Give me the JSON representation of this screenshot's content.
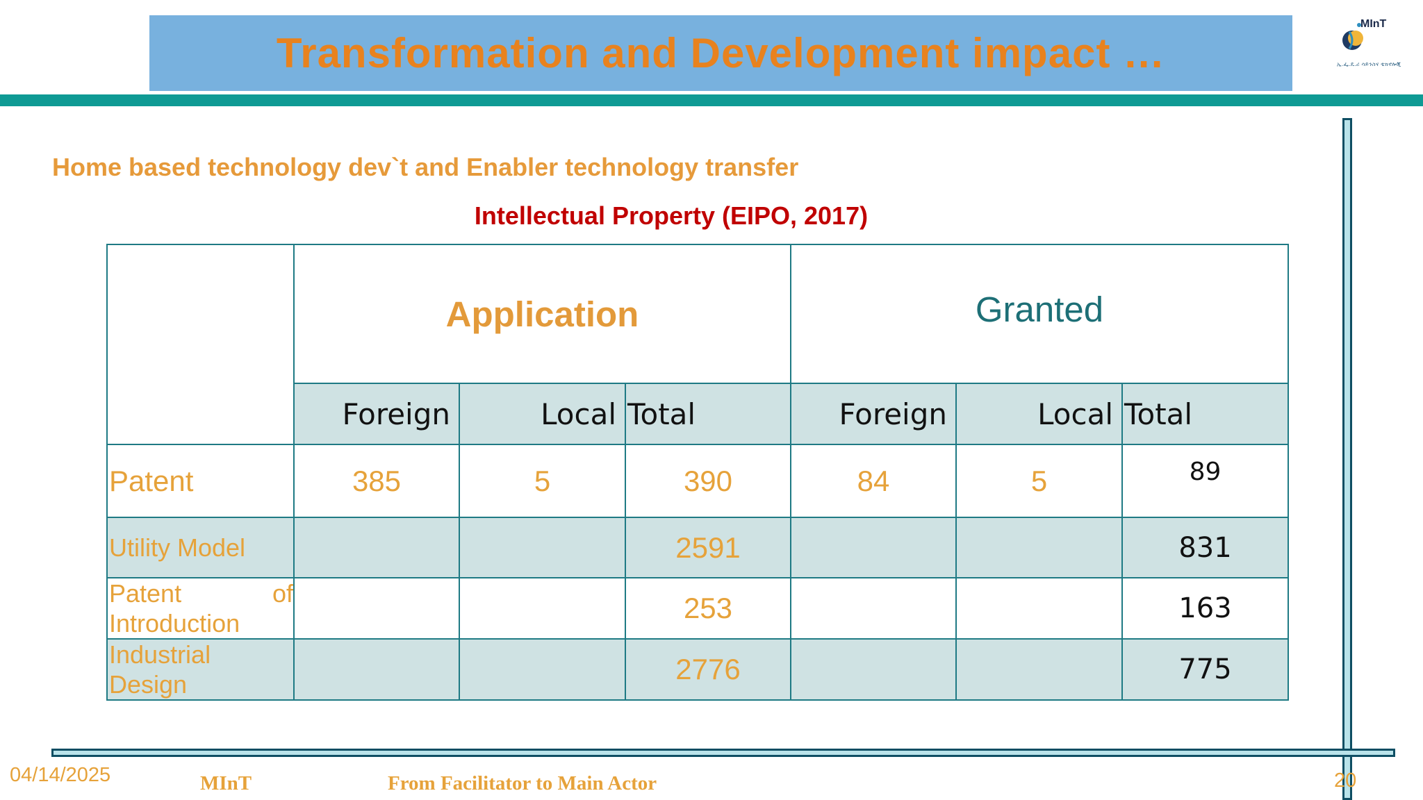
{
  "slide": {
    "title": "Transformation and Development impact …",
    "subtitle": "Home based technology dev`t and Enabler technology transfer",
    "table_title": "Intellectual Property (EIPO, 2017)"
  },
  "logo": {
    "name": "MInT",
    "caption": "ኢ.ፌ.ዴ.ሪ ሳይንስና ቴክኖሎጂ",
    "icon": "mint-logo-icon"
  },
  "table": {
    "groups": [
      "Application",
      "Granted"
    ],
    "subheaders": [
      "Foreign",
      "Local",
      "Total",
      "Foreign",
      "Local",
      "Total"
    ],
    "rows": [
      {
        "label": "Patent",
        "app_foreign": "385",
        "app_local": "5",
        "app_total": "390",
        "grant_foreign": "84",
        "grant_local": "5",
        "grant_total": "89"
      },
      {
        "label": "Utility Model",
        "app_foreign": "",
        "app_local": "",
        "app_total": "2591",
        "grant_foreign": "",
        "grant_local": "",
        "grant_total": "831"
      },
      {
        "label_line1_a": "Patent",
        "label_line1_b": "of",
        "label_line2": "Introduction",
        "app_foreign": "",
        "app_local": "",
        "app_total": "253",
        "grant_foreign": "",
        "grant_local": "",
        "grant_total": "163"
      },
      {
        "label_line1": "Industrial",
        "label_line2": "Design",
        "app_foreign": "",
        "app_local": "",
        "app_total": "2776",
        "grant_foreign": "",
        "grant_local": "",
        "grant_total": "775"
      }
    ]
  },
  "footer": {
    "date": "04/14/2025",
    "org": "MInT",
    "tagline": "From Facilitator to Main Actor",
    "page": "20"
  },
  "colors": {
    "title_bg": "#78b1de",
    "title_text": "#e8821e",
    "teal_bar": "#0f9a94",
    "row_shade": "#cfe2e3",
    "border": "#1e7a84",
    "accent_red": "#c00000"
  }
}
